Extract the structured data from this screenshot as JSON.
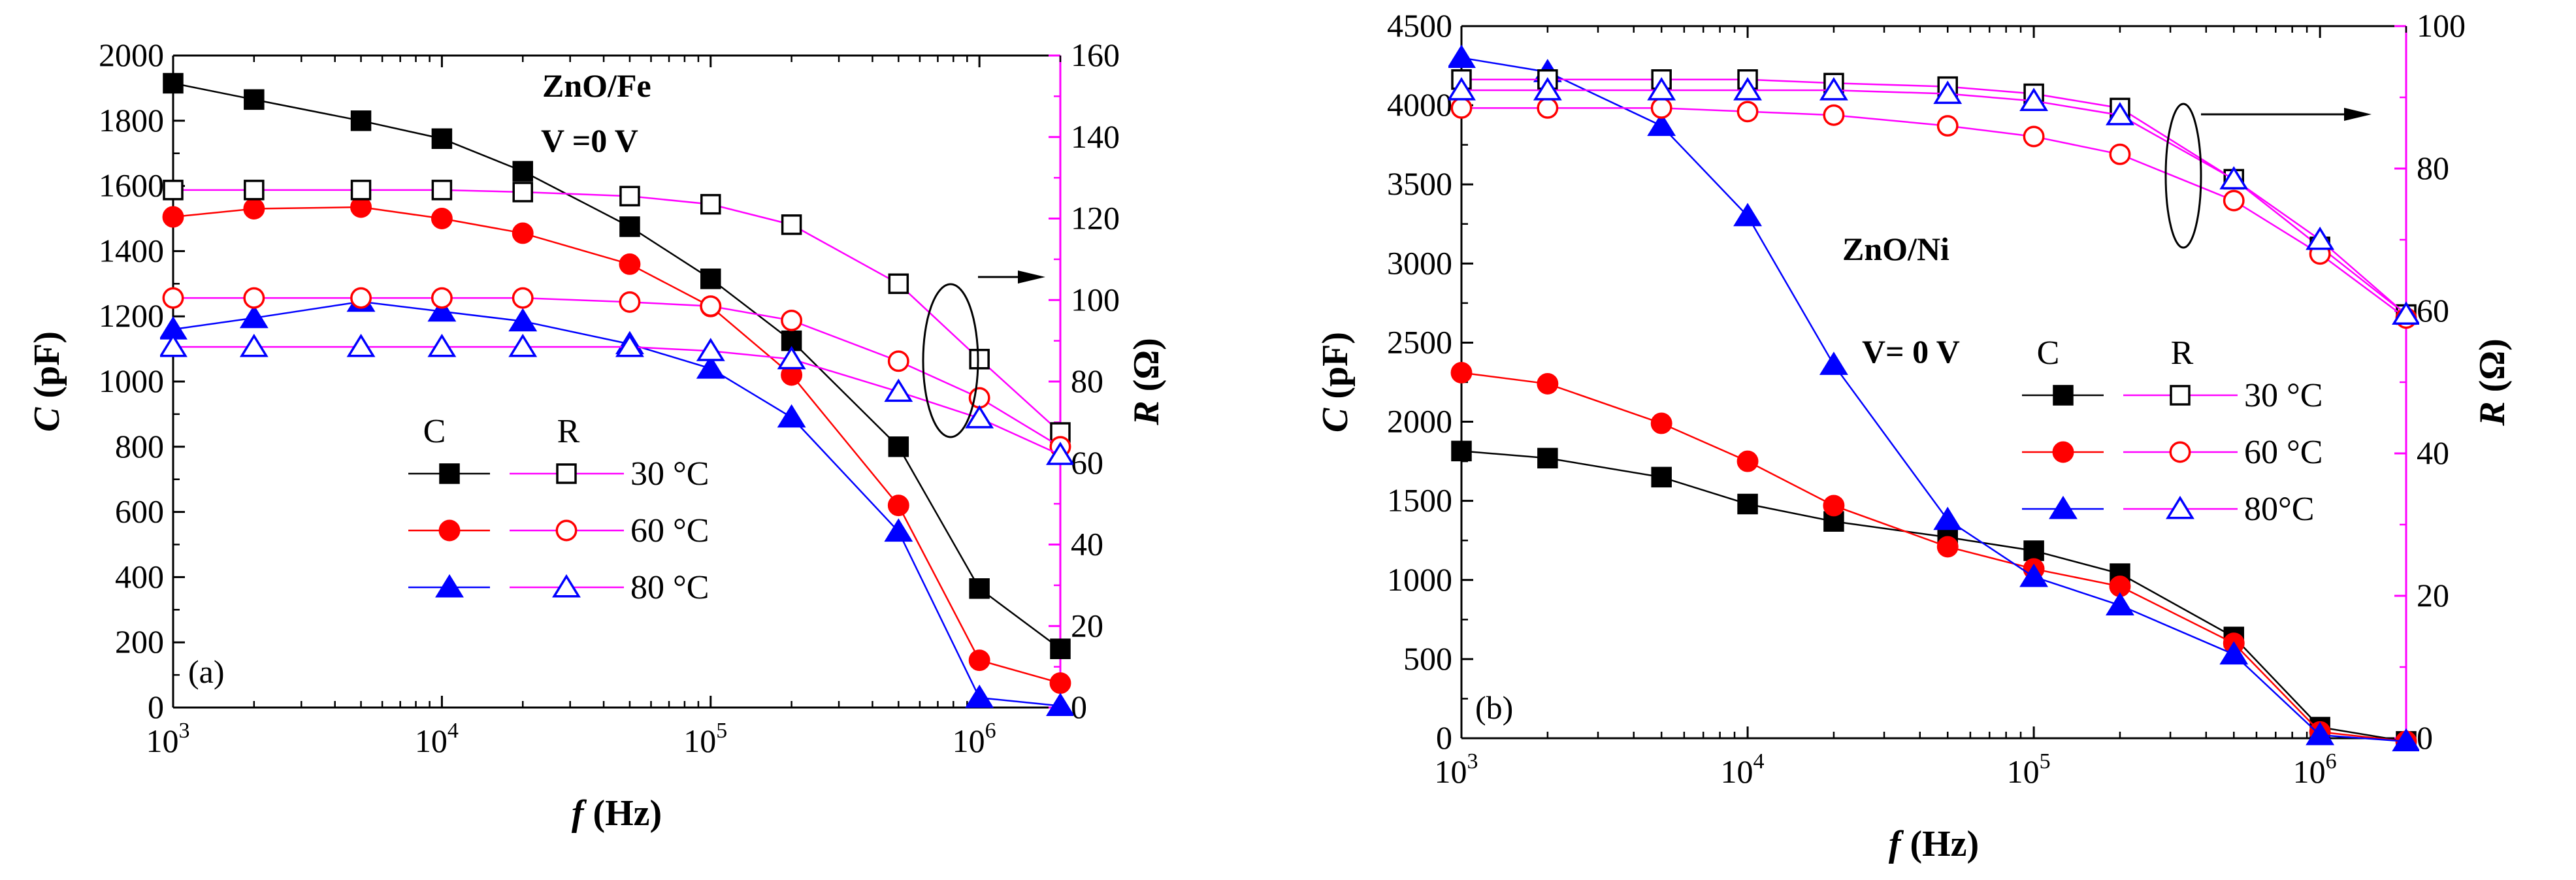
{
  "colors": {
    "axis": "#000000",
    "right_axis": "#ff00ff",
    "c30": "#000000",
    "c60": "#ff0000",
    "c80": "#0000ff",
    "r_line": "#ff00ff"
  },
  "chart_data": [
    {
      "type": "line",
      "panel_label": "(a)",
      "sample_label": "ZnO/Fe",
      "voltage_label": "V =0 V",
      "xlabel_italic": "f",
      "xlabel_unit": " (Hz)",
      "ylabel_italic": "C",
      "ylabel_unit": " (pF)",
      "y2label_italic": "R",
      "y2label_unit": " (Ω)",
      "xscale": "log",
      "xlim": [
        1000,
        2000000
      ],
      "ylim": [
        0,
        2000
      ],
      "y2lim": [
        0,
        160
      ],
      "xticks": [
        {
          "base": "10",
          "exp": "3",
          "value": 1000
        },
        {
          "base": "10",
          "exp": "4",
          "value": 10000
        },
        {
          "base": "10",
          "exp": "5",
          "value": 100000
        },
        {
          "base": "10",
          "exp": "6",
          "value": 1000000
        }
      ],
      "yticks": [
        "0",
        "200",
        "400",
        "600",
        "800",
        "1000",
        "1200",
        "1400",
        "1600",
        "1800",
        "2000"
      ],
      "y2ticks": [
        "0",
        "20",
        "40",
        "60",
        "80",
        "100",
        "120",
        "140",
        "160"
      ],
      "legend": {
        "header_c": "C",
        "header_r": "R",
        "entries": [
          "30 °C",
          "60 °C",
          "80 °C"
        ],
        "placement": "bottom-center"
      },
      "x": [
        1000,
        2000,
        5000,
        10000,
        20000,
        50000,
        100000,
        200000,
        500000,
        1000000,
        2000000
      ],
      "series": [
        {
          "name": "C 30 °C",
          "axis": "left",
          "marker": "square",
          "filled": true,
          "color": "#000000",
          "values": [
            1915,
            1865,
            1800,
            1745,
            1645,
            1475,
            1315,
            1125,
            800,
            365,
            180
          ]
        },
        {
          "name": "C 60 °C",
          "axis": "left",
          "marker": "circle",
          "filled": true,
          "color": "#ff0000",
          "values": [
            1505,
            1530,
            1535,
            1500,
            1455,
            1360,
            1230,
            1020,
            620,
            145,
            75
          ]
        },
        {
          "name": "C 80 °C",
          "axis": "left",
          "marker": "triangle",
          "filled": true,
          "color": "#0000ff",
          "values": [
            1160,
            1195,
            1245,
            1215,
            1185,
            1115,
            1040,
            890,
            540,
            30,
            5
          ]
        },
        {
          "name": "R 30 °C",
          "axis": "right",
          "marker": "square",
          "filled": false,
          "color": "#000000",
          "values": [
            127,
            127,
            127,
            127,
            126.5,
            125.5,
            123.5,
            118.5,
            104,
            85.5,
            67.5
          ]
        },
        {
          "name": "R 60 °C",
          "axis": "right",
          "marker": "circle",
          "filled": false,
          "color": "#ff0000",
          "values": [
            100.5,
            100.5,
            100.5,
            100.5,
            100.5,
            99.5,
            98.5,
            95,
            85,
            76,
            64
          ]
        },
        {
          "name": "R 80 °C",
          "axis": "right",
          "marker": "triangle",
          "filled": false,
          "color": "#0000ff",
          "values": [
            88.5,
            88.5,
            88.5,
            88.5,
            88.5,
            88.5,
            87.5,
            85.5,
            77.5,
            71,
            62
          ]
        }
      ]
    },
    {
      "type": "line",
      "panel_label": "(b)",
      "sample_label": "ZnO/Ni",
      "voltage_label": "V= 0 V",
      "xlabel_italic": "f",
      "xlabel_unit": "  (Hz)",
      "ylabel_italic": "C",
      "ylabel_unit": " (pF)",
      "y2label_italic": "R",
      "y2label_unit": " (Ω)",
      "xscale": "log",
      "xlim": [
        1000,
        2000000
      ],
      "ylim": [
        0,
        4500
      ],
      "y2lim": [
        0,
        100
      ],
      "xticks": [
        {
          "base": "10",
          "exp": "3",
          "value": 1000
        },
        {
          "base": "10",
          "exp": "4",
          "value": 10000
        },
        {
          "base": "10",
          "exp": "5",
          "value": 100000
        },
        {
          "base": "10",
          "exp": "6",
          "value": 1000000
        }
      ],
      "yticks": [
        "0",
        "500",
        "1000",
        "1500",
        "2000",
        "2500",
        "3000",
        "3500",
        "4000",
        "4500"
      ],
      "y2ticks": [
        "0",
        "20",
        "40",
        "60",
        "80",
        "100"
      ],
      "legend": {
        "header_c": "C",
        "header_r": "R",
        "entries": [
          "30 °C",
          "60 °C",
          "80°C"
        ],
        "placement": "center-right"
      },
      "x": [
        1000,
        2000,
        5000,
        10000,
        20000,
        50000,
        100000,
        200000,
        500000,
        1000000,
        2000000
      ],
      "series": [
        {
          "name": "C 30 °C",
          "axis": "left",
          "marker": "square",
          "filled": true,
          "color": "#000000",
          "values": [
            1815,
            1770,
            1650,
            1480,
            1370,
            1270,
            1185,
            1040,
            640,
            70,
            -20
          ]
        },
        {
          "name": "C 60 °C",
          "axis": "left",
          "marker": "circle",
          "filled": true,
          "color": "#ff0000",
          "values": [
            2310,
            2240,
            1990,
            1750,
            1470,
            1210,
            1070,
            960,
            600,
            40,
            -20
          ]
        },
        {
          "name": "C 80 °C",
          "axis": "left",
          "marker": "triangle",
          "filled": true,
          "color": "#0000ff",
          "values": [
            4300,
            4210,
            3870,
            3300,
            2360,
            1380,
            1020,
            840,
            530,
            20,
            -20
          ]
        },
        {
          "name": "R 30 °C",
          "axis": "right",
          "marker": "square",
          "filled": false,
          "color": "#000000",
          "values": [
            92.5,
            92.5,
            92.5,
            92.5,
            92,
            91.5,
            90.5,
            88.5,
            78.5,
            69,
            59.5
          ]
        },
        {
          "name": "R 60 °C",
          "axis": "right",
          "marker": "circle",
          "filled": false,
          "color": "#ff0000",
          "values": [
            88.5,
            88.5,
            88.5,
            88,
            87.5,
            86,
            84.5,
            82,
            75.5,
            68,
            59
          ]
        },
        {
          "name": "R 80 °C",
          "axis": "right",
          "marker": "triangle",
          "filled": false,
          "color": "#0000ff",
          "values": [
            91,
            91,
            91,
            91,
            91,
            90.5,
            89.5,
            87.5,
            78.5,
            70,
            59.5
          ]
        }
      ]
    }
  ]
}
